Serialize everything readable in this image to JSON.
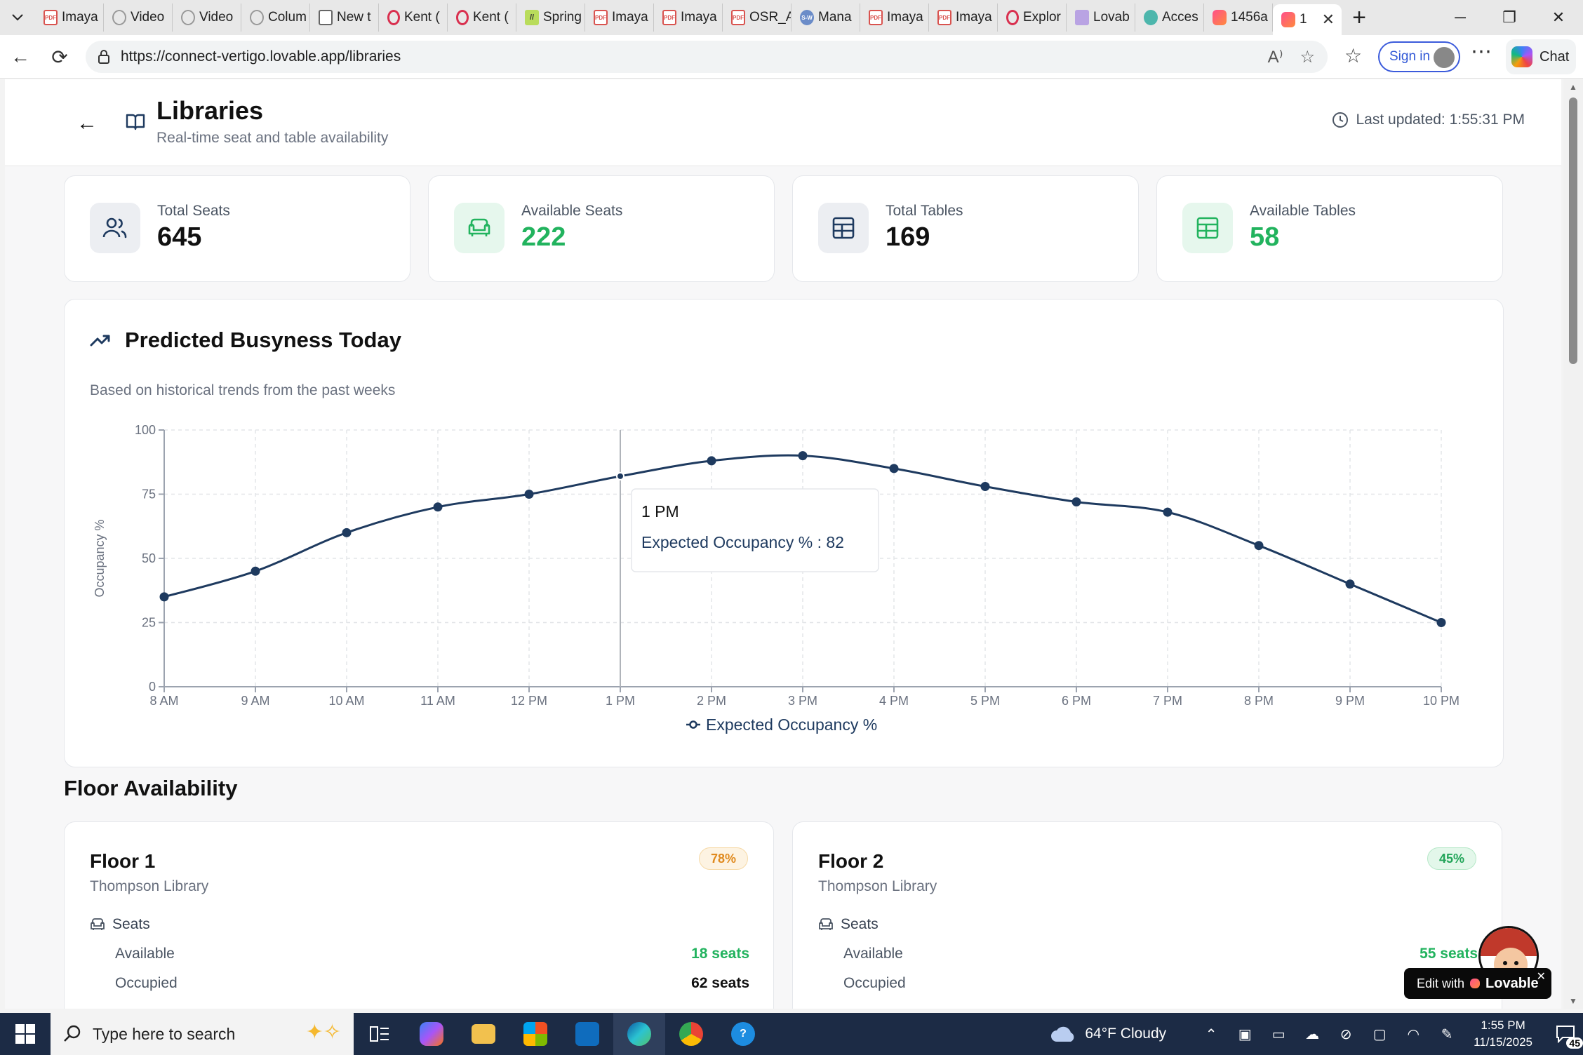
{
  "browser": {
    "tabs": [
      {
        "label": "Imaya",
        "fav": "pdf"
      },
      {
        "label": "Video",
        "fav": "yt"
      },
      {
        "label": "Video",
        "fav": "yt"
      },
      {
        "label": "Colum",
        "fav": "yt"
      },
      {
        "label": "New t",
        "fav": "doc"
      },
      {
        "label": "Kent (",
        "fav": "opera"
      },
      {
        "label": "Kent (",
        "fav": "opera"
      },
      {
        "label": "Spring",
        "fav": "grn"
      },
      {
        "label": "Imaya",
        "fav": "pdf"
      },
      {
        "label": "Imaya",
        "fav": "pdf"
      },
      {
        "label": "OSR_A",
        "fav": "pdf"
      },
      {
        "label": "Mana",
        "fav": "sw"
      },
      {
        "label": "Imaya",
        "fav": "pdf"
      },
      {
        "label": "Imaya",
        "fav": "pdf"
      },
      {
        "label": "Explor",
        "fav": "opera"
      },
      {
        "label": "Lovab",
        "fav": "vid"
      },
      {
        "label": "Acces",
        "fav": "acc"
      },
      {
        "label": "1456a",
        "fav": "lov"
      }
    ],
    "active_tab_label": "1",
    "url": "https://connect-vertigo.lovable.app/libraries",
    "signin_label": "Sign in",
    "chat_label": "Chat"
  },
  "header": {
    "title": "Libraries",
    "subtitle": "Real-time seat and table availability",
    "last_updated": "Last updated: 1:55:31 PM"
  },
  "stats": [
    {
      "label": "Total Seats",
      "value": "645",
      "icon": "users-icon",
      "accent": "#1e3a5f",
      "green": false
    },
    {
      "label": "Available Seats",
      "value": "222",
      "icon": "armchair-icon",
      "accent": "#22b35e",
      "green": true
    },
    {
      "label": "Total Tables",
      "value": "169",
      "icon": "table-grid-icon",
      "accent": "#1e3a5f",
      "green": false
    },
    {
      "label": "Available Tables",
      "value": "58",
      "icon": "table-grid-icon",
      "accent": "#22b35e",
      "green": true
    }
  ],
  "busyness": {
    "title": "Predicted Busyness Today",
    "description": "Based on historical trends from the past weeks"
  },
  "chart_data": {
    "type": "line",
    "categories": [
      "8 AM",
      "9 AM",
      "10 AM",
      "11 AM",
      "12 PM",
      "1 PM",
      "2 PM",
      "3 PM",
      "4 PM",
      "5 PM",
      "6 PM",
      "7 PM",
      "8 PM",
      "9 PM",
      "10 PM"
    ],
    "series": [
      {
        "name": "Expected Occupancy %",
        "values": [
          35,
          45,
          60,
          70,
          75,
          82,
          88,
          90,
          85,
          78,
          72,
          68,
          55,
          40,
          25
        ]
      }
    ],
    "ylabel": "Occupancy %",
    "ylim": [
      0,
      100
    ],
    "yticks": [
      0,
      25,
      50,
      75,
      100
    ],
    "grid": true,
    "legend": "bottom-center",
    "line_color": "#1e3a5f",
    "tooltip": {
      "category": "1 PM",
      "label": "Expected Occupancy %",
      "value": "82"
    }
  },
  "floors": {
    "title": "Floor Availability",
    "items": [
      {
        "name": "Floor 1",
        "library": "Thompson Library",
        "badge": "78%",
        "badge_tone": "amber",
        "seats_label": "Seats",
        "available_label": "Available",
        "available": "18 seats",
        "occupied_label": "Occupied",
        "occupied": "62 seats"
      },
      {
        "name": "Floor 2",
        "library": "Thompson Library",
        "badge": "45%",
        "badge_tone": "green",
        "seats_label": "Seats",
        "available_label": "Available",
        "available": "55 seats",
        "occupied_label": "Occupied",
        "occupied": ""
      }
    ]
  },
  "lovable_badge": {
    "prefix": "Edit with",
    "brand": "Lovable"
  },
  "taskbar": {
    "search_placeholder": "Type here to search",
    "weather": "64°F  Cloudy",
    "time": "1:55 PM",
    "date": "11/15/2025",
    "notifications": "45"
  }
}
